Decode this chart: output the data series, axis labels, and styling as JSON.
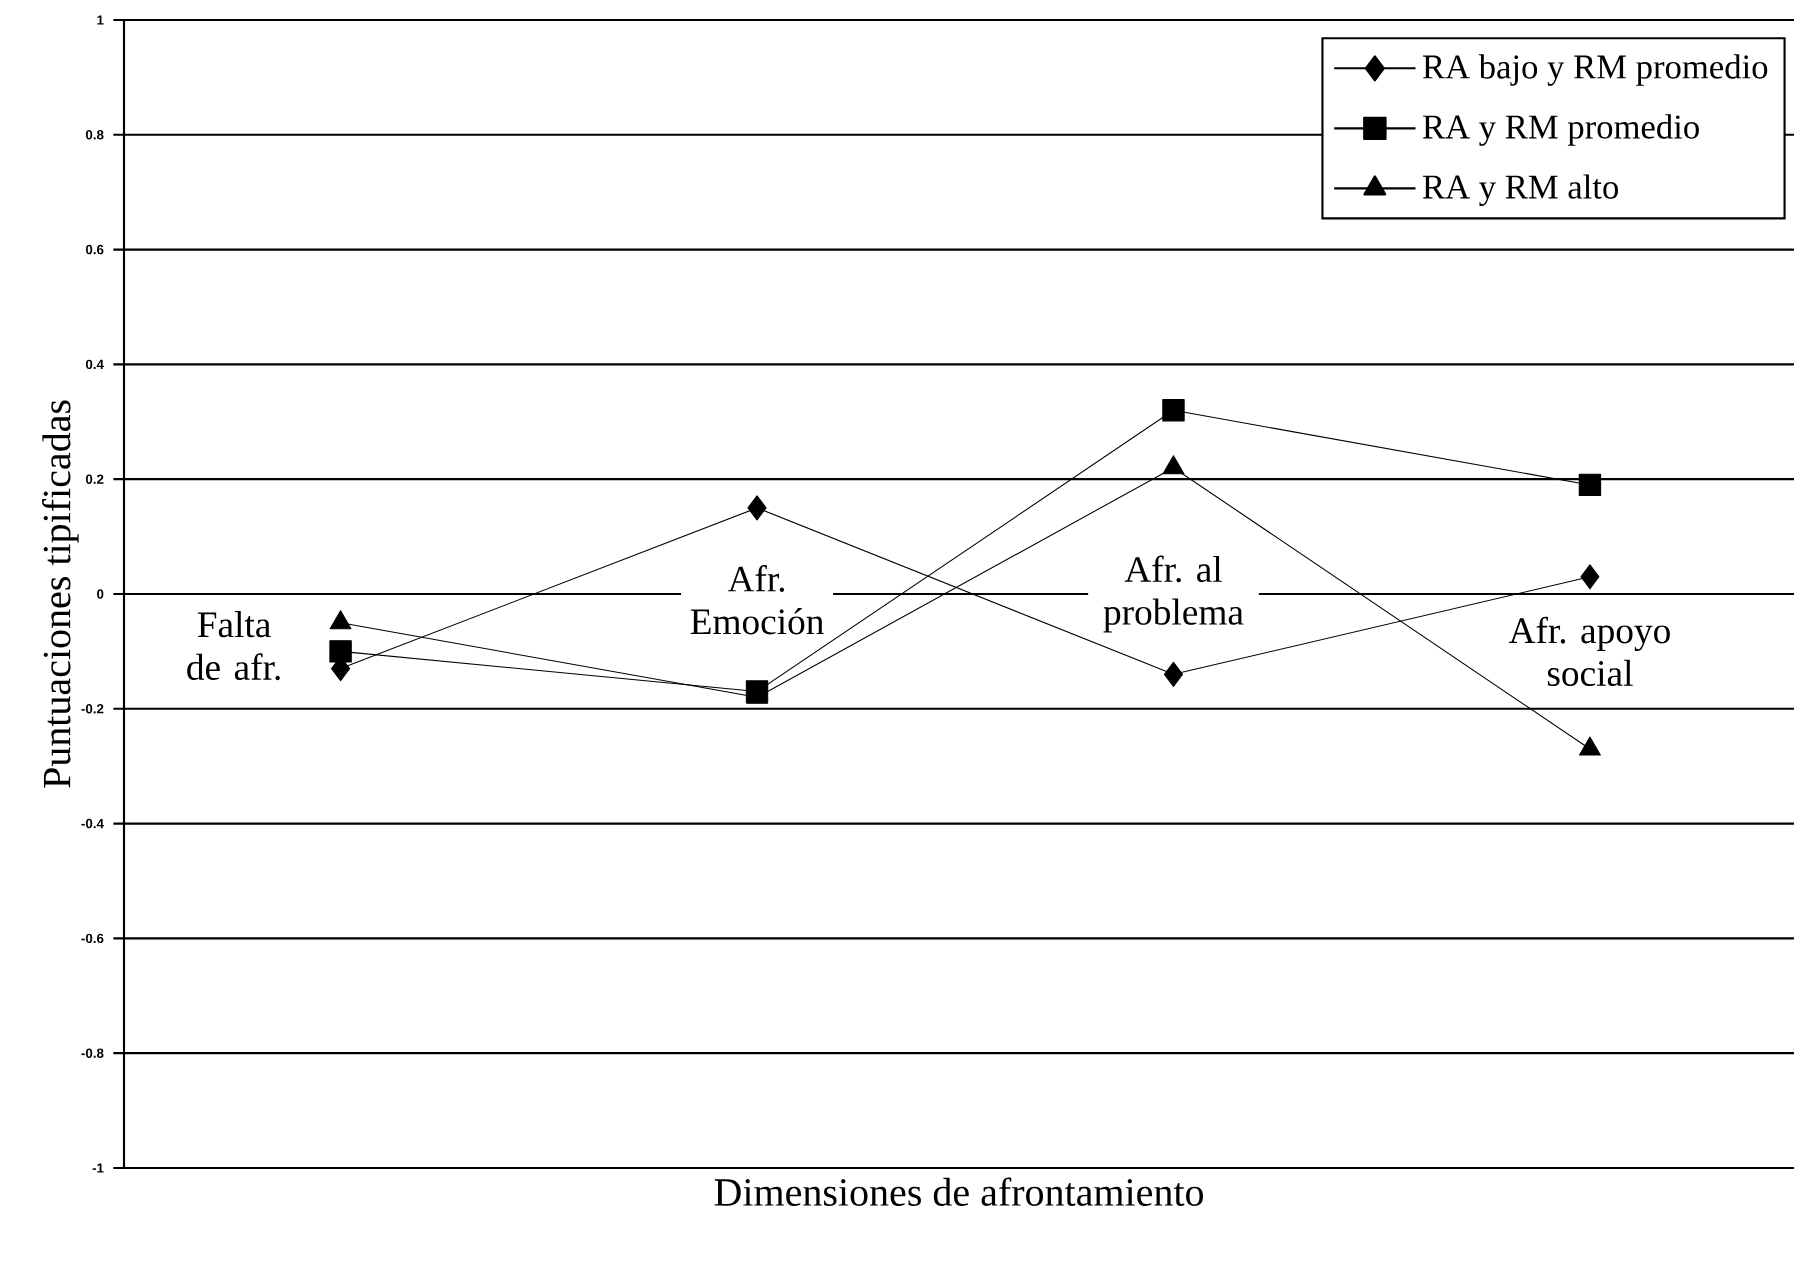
{
  "chart_data": {
    "type": "line",
    "xlabel": "Dimensiones de afrontamiento",
    "ylabel": "Puntuaciones tipificadas",
    "categories": [
      "Falta de afr.",
      "Afr. Emoción",
      "Afr. al problema",
      "Afr. apoyo social"
    ],
    "series": [
      {
        "name": "RA bajo y RM promedio",
        "color": "#000000",
        "marker": "diamond",
        "values": [
          -0.13,
          0.15,
          -0.14,
          0.03
        ]
      },
      {
        "name": "RA y RM promedio",
        "color": "#000000",
        "marker": "square",
        "values": [
          -0.1,
          -0.17,
          0.32,
          0.19
        ]
      },
      {
        "name": "RA y RM alto",
        "color": "#000000",
        "marker": "triangle",
        "values": [
          -0.05,
          -0.18,
          0.22,
          -0.27
        ]
      }
    ],
    "ylim": [
      -1,
      1
    ],
    "yticks": [
      -1,
      -0.8,
      -0.6,
      -0.4,
      -0.2,
      0,
      0.2,
      0.4,
      0.6,
      0.8,
      1
    ],
    "grid": "y",
    "legend": "top right",
    "line_style": "solid"
  }
}
